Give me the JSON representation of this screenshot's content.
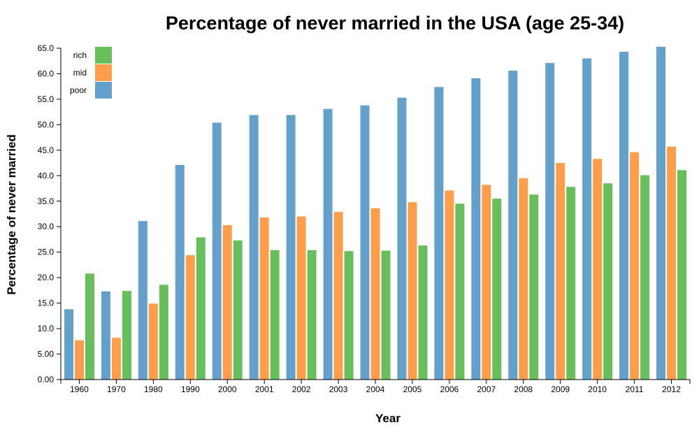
{
  "chart_data": {
    "type": "bar",
    "title": "Percentage of never married in the USA (age 25-34)",
    "xlabel": "Year",
    "ylabel": "Percentage of never married",
    "categories": [
      "1960",
      "1970",
      "1980",
      "1990",
      "2000",
      "2001",
      "2002",
      "2003",
      "2004",
      "2005",
      "2006",
      "2007",
      "2008",
      "2009",
      "2010",
      "2011",
      "2012"
    ],
    "ylim": [
      0,
      65
    ],
    "y_ticks": [
      "0.00",
      "5.00",
      "10.0",
      "15.0",
      "20.0",
      "25.0",
      "30.0",
      "35.0",
      "40.0",
      "45.0",
      "50.0",
      "55.0",
      "60.0",
      "65.0"
    ],
    "grid": false,
    "legend_position": "top-left",
    "series": [
      {
        "name": "poor",
        "color": "#63a0cb",
        "values": [
          13.8,
          17.3,
          31.1,
          42.1,
          50.4,
          51.9,
          51.9,
          53.1,
          53.8,
          55.3,
          57.4,
          59.1,
          60.6,
          62.1,
          63.0,
          64.3,
          65.3
        ]
      },
      {
        "name": "mid",
        "color": "#ff9e4a",
        "values": [
          7.7,
          8.2,
          14.9,
          24.4,
          30.3,
          31.8,
          32.0,
          32.9,
          33.6,
          34.8,
          37.1,
          38.2,
          39.5,
          42.5,
          43.3,
          44.6,
          45.7
        ]
      },
      {
        "name": "rich",
        "color": "#67bf5c",
        "values": [
          20.8,
          17.4,
          18.6,
          27.9,
          27.3,
          25.4,
          25.4,
          25.2,
          25.3,
          26.3,
          34.5,
          35.5,
          36.3,
          37.8,
          38.5,
          40.1,
          41.1
        ]
      }
    ],
    "legend_order": [
      "rich",
      "mid",
      "poor"
    ]
  }
}
